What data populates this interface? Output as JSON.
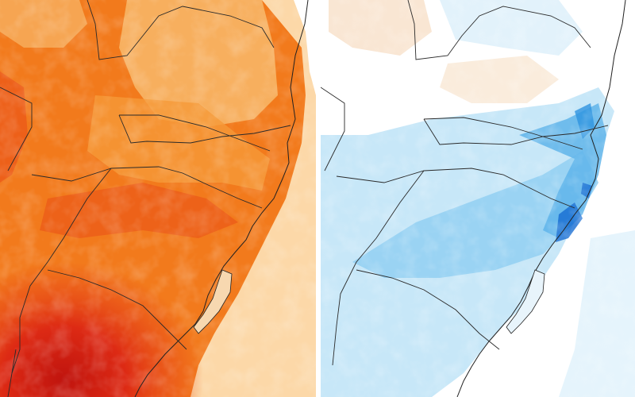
{
  "maps": [
    {
      "id": "warm",
      "palette": [
        "#fff0dd",
        "#fcd8a8",
        "#f8b86a",
        "#f59a38",
        "#f27a1c",
        "#e94f18",
        "#dd2a14",
        "#c0140e"
      ]
    },
    {
      "id": "cool",
      "palette": [
        "#ffffff",
        "#dff1fb",
        "#bde3f7",
        "#92cff2",
        "#5fb4ea",
        "#2e93e0",
        "#156bd2",
        "#0c43b6"
      ]
    }
  ]
}
